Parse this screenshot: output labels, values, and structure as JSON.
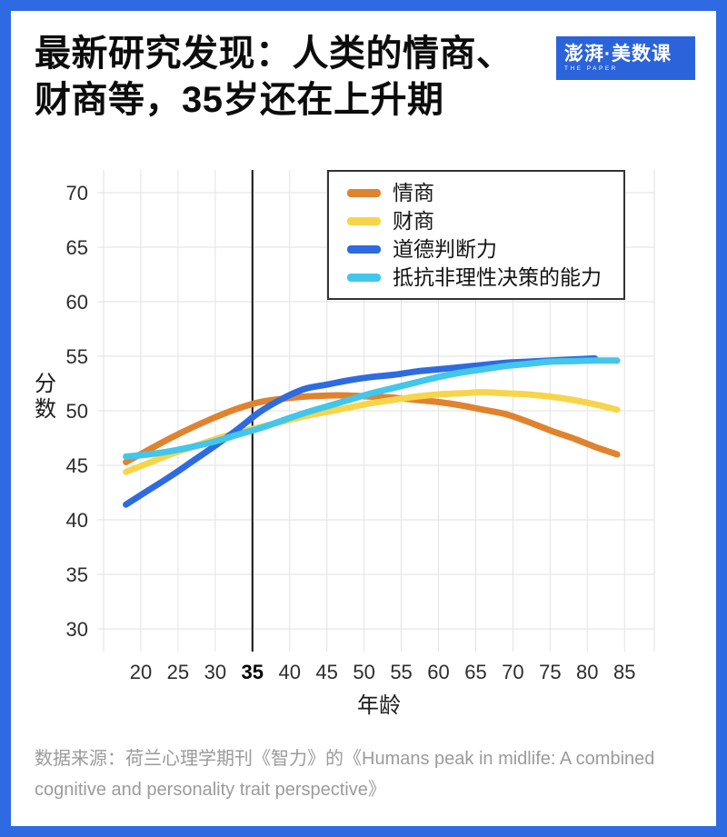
{
  "page": {
    "title_line1": "最新研究发现：人类的情商、",
    "title_line2": "财商等，35岁还在上升期",
    "logo_text": "澎湃·美数课",
    "logo_subtext": "THE PAPER",
    "logo_bg_color": "#2B63DB",
    "frame_color": "#2E6AE1",
    "source_line1": "数据来源：荷兰心理学期刊《智力》的《Humans peak in midlife: A combined",
    "source_line2": "cognitive and personality trait perspective》"
  },
  "chart_data": {
    "type": "line",
    "title": "",
    "xlabel": "年龄",
    "ylabel": "分数",
    "x_ticks": [
      20,
      25,
      30,
      35,
      40,
      45,
      50,
      55,
      60,
      65,
      70,
      75,
      80,
      85
    ],
    "y_ticks": [
      30,
      35,
      40,
      45,
      50,
      55,
      60,
      65,
      70
    ],
    "x_range": [
      15,
      89
    ],
    "y_range": [
      27.9,
      72.1
    ],
    "grid": true,
    "legend_position": "top-right",
    "highlight_line_x": 35,
    "highlight_tick_label": "35",
    "gridline_color": "#E2E2E2",
    "highlight_line_color": "#111111",
    "tick_label_color": "#2d2d2d",
    "x": [
      18,
      21,
      24,
      27,
      30,
      33,
      36,
      39,
      42,
      45,
      48,
      51,
      54,
      57,
      60,
      63,
      66,
      69,
      72,
      75,
      78,
      81,
      84
    ],
    "series": [
      {
        "name": "情商",
        "color": "#E0832F",
        "values": [
          45.3,
          46.4,
          47.5,
          48.5,
          49.4,
          50.2,
          50.8,
          51.1,
          51.3,
          51.4,
          51.4,
          51.3,
          51.2,
          51.0,
          50.8,
          50.5,
          50.1,
          49.7,
          49.0,
          48.2,
          47.5,
          46.7,
          46.0
        ]
      },
      {
        "name": "财商",
        "color": "#F7D54A",
        "values": [
          44.4,
          45.2,
          46.0,
          46.7,
          47.4,
          48.0,
          48.5,
          49.0,
          49.5,
          49.9,
          50.3,
          50.7,
          51.0,
          51.3,
          51.5,
          51.6,
          51.7,
          51.6,
          51.5,
          51.3,
          51.0,
          50.6,
          50.1
        ]
      },
      {
        "name": "道德判断力",
        "color": "#2E6BE0",
        "values": [
          41.4,
          42.7,
          44.0,
          45.4,
          46.8,
          48.3,
          49.9,
          51.1,
          52.0,
          52.4,
          52.8,
          53.1,
          53.3,
          53.6,
          53.8,
          54.0,
          54.2,
          54.4,
          54.5,
          54.6,
          54.7,
          54.8,
          null
        ]
      },
      {
        "name": "抵抗非理性决策的能力",
        "color": "#42C6EC",
        "values": [
          45.8,
          46.0,
          46.3,
          46.7,
          47.2,
          47.8,
          48.4,
          49.1,
          49.8,
          50.4,
          51.0,
          51.6,
          52.1,
          52.6,
          53.1,
          53.5,
          53.8,
          54.1,
          54.3,
          54.5,
          54.55,
          54.6,
          54.6
        ]
      }
    ]
  }
}
